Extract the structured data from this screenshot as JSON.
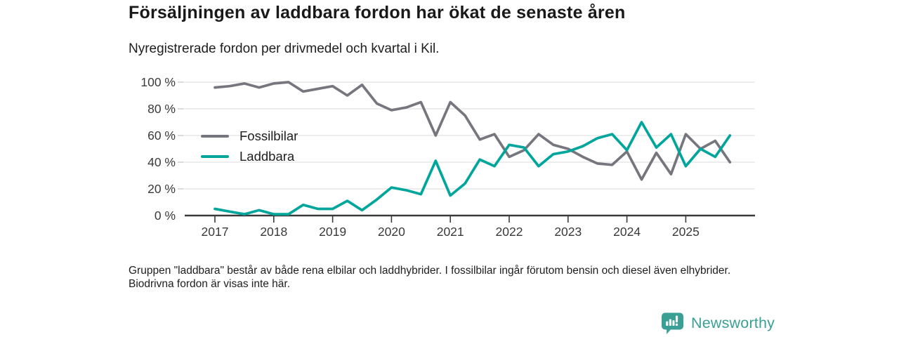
{
  "header": {
    "title": "Försäljningen av laddbara fordon har ökat de senaste åren",
    "subtitle": "Nyregistrerade fordon per drivmedel och kvartal i Kil."
  },
  "chart_data": {
    "type": "line",
    "x": [
      "2017 Q1",
      "2017 Q2",
      "2017 Q3",
      "2017 Q4",
      "2018 Q1",
      "2018 Q2",
      "2018 Q3",
      "2018 Q4",
      "2019 Q1",
      "2019 Q2",
      "2019 Q3",
      "2019 Q4",
      "2020 Q1",
      "2020 Q2",
      "2020 Q3",
      "2020 Q4",
      "2021 Q1",
      "2021 Q2",
      "2021 Q3",
      "2021 Q4",
      "2022 Q1",
      "2022 Q2",
      "2022 Q3",
      "2022 Q4",
      "2023 Q1",
      "2023 Q2",
      "2023 Q3",
      "2023 Q4",
      "2024 Q1",
      "2024 Q2",
      "2024 Q3",
      "2024 Q4",
      "2025 Q1",
      "2025 Q2",
      "2025 Q3",
      "2025 Q4"
    ],
    "series": [
      {
        "name": "Fossilbilar",
        "color": "#76767e",
        "values": [
          96,
          97,
          99,
          96,
          99,
          100,
          93,
          95,
          97,
          90,
          98,
          84,
          79,
          81,
          85,
          60,
          85,
          75,
          57,
          61,
          44,
          49,
          61,
          53,
          50,
          44,
          39,
          38,
          48,
          27,
          47,
          31,
          61,
          50,
          56,
          40
        ]
      },
      {
        "name": "Laddbara",
        "color": "#00a59b",
        "values": [
          5,
          3,
          1,
          4,
          1,
          1,
          8,
          5,
          5,
          11,
          4,
          12,
          21,
          19,
          16,
          41,
          15,
          24,
          42,
          37,
          53,
          51,
          37,
          46,
          48,
          52,
          58,
          61,
          49,
          70,
          51,
          61,
          37,
          50,
          44,
          60
        ]
      }
    ],
    "xticks": [
      "2017",
      "2018",
      "2019",
      "2020",
      "2021",
      "2022",
      "2023",
      "2024",
      "2025"
    ],
    "yticks": [
      {
        "value": 0,
        "label": "0 %"
      },
      {
        "value": 20,
        "label": "20 %"
      },
      {
        "value": 40,
        "label": "40 %"
      },
      {
        "value": 60,
        "label": "60 %"
      },
      {
        "value": 80,
        "label": "80 %"
      },
      {
        "value": 100,
        "label": "100 %"
      }
    ],
    "ylim": [
      0,
      100
    ],
    "unit": "%",
    "grid": true,
    "legend_position": "inside-left",
    "title": "Nyregistrerade fordon per drivmedel och kvartal i Kil."
  },
  "footer": {
    "note": "Gruppen \"laddbara\" består av både rena elbilar och laddhybrider. I fossilbilar ingår förutom bensin och diesel även elhybrider. Biodrivna fordon är visas inte här."
  },
  "branding": {
    "name": "Newsworthy",
    "icon": "newsworthy-bar-chart-pin-icon",
    "color": "#3aa096"
  },
  "colors": {
    "axis": "#3a3a3a",
    "grid": "#e2e2e4",
    "background": "#ffffff"
  }
}
